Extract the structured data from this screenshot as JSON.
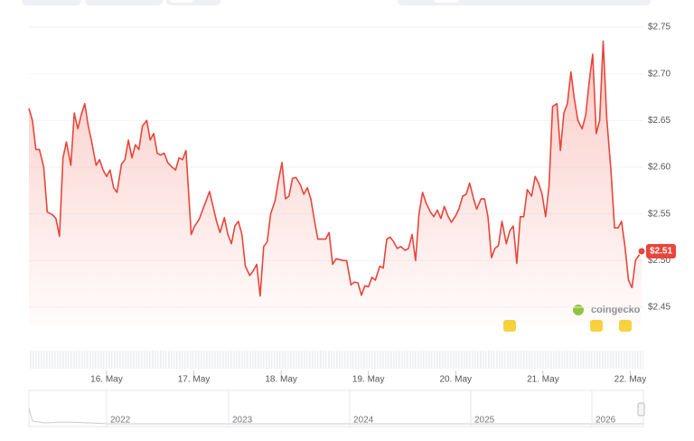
{
  "chart_data": {
    "type": "line",
    "color": "#e8463a",
    "grid": true,
    "x": [
      15.11,
      15.15,
      15.19,
      15.23,
      15.28,
      15.32,
      15.38,
      15.42,
      15.46,
      15.5,
      15.54,
      15.59,
      15.63,
      15.67,
      15.71,
      15.75,
      15.79,
      15.83,
      15.88,
      15.92,
      15.96,
      16.0,
      16.04,
      16.08,
      16.12,
      16.17,
      16.21,
      16.25,
      16.29,
      16.33,
      16.37,
      16.41,
      16.46,
      16.5,
      16.54,
      16.58,
      16.62,
      16.66,
      16.7,
      16.75,
      16.79,
      16.83,
      16.87,
      16.91,
      16.97,
      17.01,
      17.06,
      17.1,
      17.14,
      17.18,
      17.22,
      17.26,
      17.3,
      17.35,
      17.39,
      17.43,
      17.47,
      17.51,
      17.55,
      17.59,
      17.64,
      17.68,
      17.72,
      17.76,
      17.8,
      17.84,
      17.88,
      17.93,
      17.97,
      18.01,
      18.05,
      18.09,
      18.13,
      18.17,
      18.22,
      18.26,
      18.3,
      18.34,
      18.38,
      18.42,
      18.46,
      18.51,
      18.55,
      18.59,
      18.63,
      18.67,
      18.71,
      18.75,
      18.8,
      18.84,
      18.88,
      18.92,
      18.96,
      19.0,
      19.04,
      19.08,
      19.13,
      19.17,
      19.21,
      19.25,
      19.29,
      19.33,
      19.37,
      19.42,
      19.46,
      19.5,
      19.54,
      19.58,
      19.62,
      19.66,
      19.71,
      19.75,
      19.79,
      19.83,
      19.87,
      19.91,
      19.95,
      20.0,
      20.04,
      20.08,
      20.12,
      20.16,
      20.2,
      20.24,
      20.29,
      20.33,
      20.37,
      20.41,
      20.45,
      20.49,
      20.53,
      20.58,
      20.62,
      20.66,
      20.7,
      20.74,
      20.78,
      20.82,
      20.87,
      20.91,
      20.95,
      20.99,
      21.03,
      21.07,
      21.11,
      21.16,
      21.2,
      21.24,
      21.28,
      21.32,
      21.36,
      21.4,
      21.45,
      21.49,
      21.53,
      21.57,
      21.61,
      21.65,
      21.69,
      21.73,
      21.78,
      21.82,
      21.86,
      21.9,
      21.94,
      21.98,
      22.02,
      22.06,
      22.13
    ],
    "values": [
      2.663,
      2.65,
      2.619,
      2.619,
      2.6,
      2.552,
      2.549,
      2.545,
      2.526,
      2.61,
      2.627,
      2.602,
      2.658,
      2.641,
      2.656,
      2.668,
      2.644,
      2.627,
      2.602,
      2.608,
      2.597,
      2.59,
      2.597,
      2.578,
      2.573,
      2.603,
      2.608,
      2.629,
      2.61,
      2.624,
      2.619,
      2.644,
      2.65,
      2.629,
      2.636,
      2.615,
      2.613,
      2.615,
      2.605,
      2.6,
      2.597,
      2.61,
      2.608,
      2.618,
      2.528,
      2.537,
      2.544,
      2.554,
      2.564,
      2.574,
      2.558,
      2.542,
      2.53,
      2.546,
      2.528,
      2.518,
      2.537,
      2.542,
      2.528,
      2.494,
      2.484,
      2.489,
      2.496,
      2.462,
      2.515,
      2.52,
      2.55,
      2.564,
      2.586,
      2.605,
      2.566,
      2.569,
      2.588,
      2.589,
      2.581,
      2.571,
      2.578,
      2.566,
      2.544,
      2.523,
      2.523,
      2.523,
      2.53,
      2.496,
      2.502,
      2.501,
      2.5,
      2.5,
      2.474,
      2.477,
      2.476,
      2.463,
      2.473,
      2.472,
      2.482,
      2.479,
      2.494,
      2.492,
      2.523,
      2.525,
      2.52,
      2.513,
      2.515,
      2.511,
      2.513,
      2.528,
      2.5,
      2.55,
      2.573,
      2.562,
      2.552,
      2.547,
      2.554,
      2.545,
      2.558,
      2.548,
      2.541,
      2.548,
      2.556,
      2.569,
      2.571,
      2.583,
      2.568,
      2.555,
      2.566,
      2.566,
      2.547,
      2.503,
      2.513,
      2.516,
      2.542,
      2.518,
      2.532,
      2.537,
      2.497,
      2.547,
      2.547,
      2.576,
      2.569,
      2.59,
      2.583,
      2.571,
      2.547,
      2.58,
      2.665,
      2.668,
      2.618,
      2.658,
      2.668,
      2.702,
      2.673,
      2.65,
      2.641,
      2.656,
      2.692,
      2.721,
      2.636,
      2.65,
      2.735,
      2.653,
      2.595,
      2.535,
      2.535,
      2.542,
      2.515,
      2.479,
      2.471,
      2.5,
      2.51
    ],
    "xlim": [
      15.11,
      22.13
    ],
    "xticks": [
      {
        "value": 16,
        "label": "16. May"
      },
      {
        "value": 17,
        "label": "17. May"
      },
      {
        "value": 18,
        "label": "18. May"
      },
      {
        "value": 19,
        "label": "19. May"
      },
      {
        "value": 20,
        "label": "20. May"
      },
      {
        "value": 21,
        "label": "21. May"
      },
      {
        "value": 22,
        "label": "22. May"
      }
    ],
    "ylim": [
      2.45,
      2.75
    ],
    "yticks": [
      {
        "value": 2.75,
        "label": "$2.75"
      },
      {
        "value": 2.7,
        "label": "$2.70"
      },
      {
        "value": 2.65,
        "label": "$2.65"
      },
      {
        "value": 2.6,
        "label": "$2.60"
      },
      {
        "value": 2.55,
        "label": "$2.55"
      },
      {
        "value": 2.5,
        "label": "$2.50"
      },
      {
        "value": 2.45,
        "label": "$2.45"
      }
    ],
    "current_price_label": "$2.51",
    "watermark": "coingecko",
    "navigator_labels": [
      "2022",
      "2023",
      "2024",
      "2025",
      "2026"
    ]
  }
}
